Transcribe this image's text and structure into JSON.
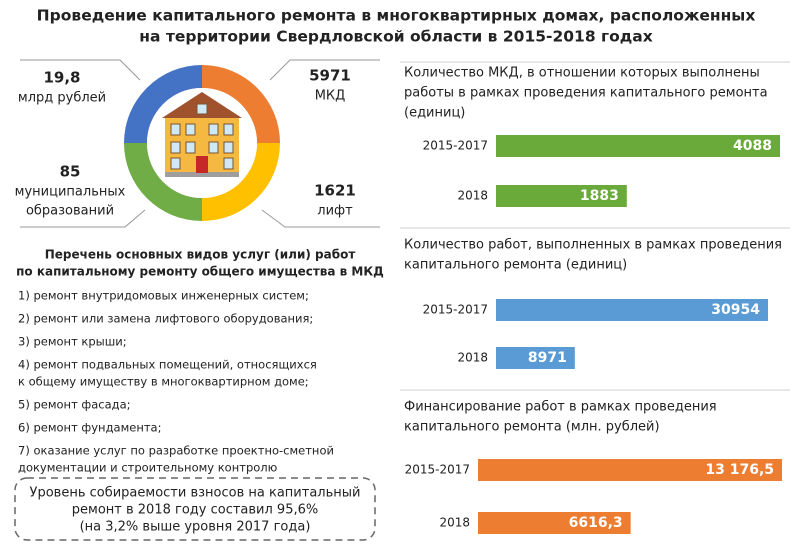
{
  "title": [
    "Проведение капитального ремонта в многоквартирных домах, расположенных",
    "на территории Свердловской области в 2015-2018 годах"
  ],
  "stats": [
    {
      "value": "19,8",
      "label": [
        "млрд рублей"
      ]
    },
    {
      "value": "5971",
      "label": [
        "МКД"
      ]
    },
    {
      "value": "85",
      "label": [
        "муниципальных",
        "образований"
      ]
    },
    {
      "value": "1621",
      "label": [
        "лифт"
      ]
    }
  ],
  "list": {
    "title": [
      "Перечень основных видов услуг (или) работ",
      "по капитальному ремонту общего имущества в МКД"
    ],
    "items": [
      [
        "1) ремонт внутридомовых инженерных систем;"
      ],
      [
        "2) ремонт или замена лифтового оборудования;"
      ],
      [
        "3) ремонт крыши;"
      ],
      [
        "4) ремонт подвальных помещений, относящихся",
        "к общему имуществу в многоквартирном доме;"
      ],
      [
        "5) ремонт фасада;"
      ],
      [
        "6) ремонт фундамента;"
      ],
      [
        "7) оказание услуг по разработке проектно-сметной",
        "документации и строительному контролю"
      ]
    ]
  },
  "note": [
    "Уровень собираемости взносов на капитальный",
    "ремонт в 2018 году составил 95,6%",
    "(на 3,2% выше уровня 2017 года)"
  ],
  "chart_data": [
    {
      "type": "bar",
      "title": [
        "Количество МКД, в отношении которых выполнены",
        "работы в рамках проведения капитального ремонта",
        "(единиц)"
      ],
      "categories": [
        "2015-2017",
        "2018"
      ],
      "values": [
        4088,
        1883
      ],
      "color": "#6aaa3a"
    },
    {
      "type": "bar",
      "title": [
        "Количество работ, выполненных в рамках проведения",
        "капитального ремонта (единиц)"
      ],
      "categories": [
        "2015-2017",
        "2018"
      ],
      "values": [
        30954,
        8971
      ],
      "color": "#5b9bd5"
    },
    {
      "type": "bar",
      "title": [
        "Финансирование работ в рамках проведения",
        "капитального ремонта (млн. рублей)"
      ],
      "categories": [
        "2015-2017",
        "2018"
      ],
      "values": [
        13176.5,
        6616.3
      ],
      "value_labels": [
        "13 176,5",
        "6616,3"
      ],
      "color": "#ed7d31"
    }
  ]
}
